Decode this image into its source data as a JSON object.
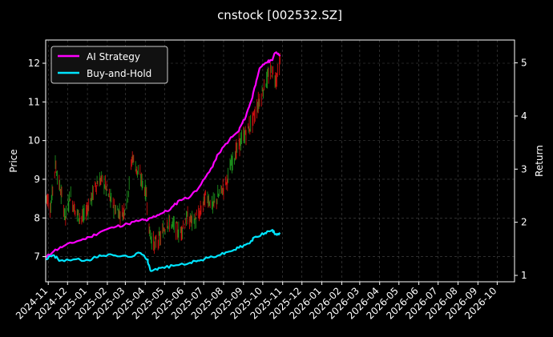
{
  "chart_data": {
    "type": "line",
    "title": "cnstock [002532.SZ]",
    "ylabel_left": "Price",
    "ylabel_right": "Return",
    "x_tick_labels": [
      "2024-11",
      "2024-12",
      "2025-01",
      "2025-02",
      "2025-03",
      "2025-04",
      "2025-05",
      "2025-06",
      "2025-07",
      "2025-08",
      "2025-09",
      "2025-10",
      "2025-11",
      "2025-12",
      "2026-01",
      "2026-02",
      "2026-03",
      "2026-04",
      "2026-05",
      "2026-06",
      "2026-07",
      "2026-08",
      "2026-09",
      "2026-10"
    ],
    "xlim": [
      "2024-10-28",
      "2026-10-28"
    ],
    "ylim_left": [
      6.35,
      12.6
    ],
    "ylim_right": [
      0.88,
      5.43
    ],
    "y_ticks_left": [
      7,
      8,
      9,
      10,
      11,
      12
    ],
    "y_ticks_right": [
      1,
      2,
      3,
      4,
      5
    ],
    "grid": true,
    "legend_position": "top-left",
    "colors": {
      "background": "#000000",
      "ai_strategy": "#ff00ff",
      "buy_and_hold": "#00e5ff",
      "candle_up": "#1fa01f",
      "candle_down": "#e01010",
      "grid": "#4a4a4a"
    },
    "price_points": [
      [
        "2024-10-28",
        8.6
      ],
      [
        "2024-11-05",
        8.3
      ],
      [
        "2024-11-12",
        9.4
      ],
      [
        "2024-11-20",
        8.7
      ],
      [
        "2024-11-28",
        8.0
      ],
      [
        "2024-12-05",
        8.6
      ],
      [
        "2024-12-15",
        8.1
      ],
      [
        "2024-12-25",
        8.0
      ],
      [
        "2025-01-05",
        8.4
      ],
      [
        "2025-01-15",
        8.9
      ],
      [
        "2025-01-25",
        9.0
      ],
      [
        "2025-02-05",
        8.5
      ],
      [
        "2025-02-15",
        8.2
      ],
      [
        "2025-02-25",
        8.1
      ],
      [
        "2025-03-05",
        8.6
      ],
      [
        "2025-03-12",
        9.6
      ],
      [
        "2025-03-20",
        9.2
      ],
      [
        "2025-03-28",
        8.9
      ],
      [
        "2025-04-03",
        8.6
      ],
      [
        "2025-04-08",
        7.6
      ],
      [
        "2025-04-15",
        7.3
      ],
      [
        "2025-04-25",
        7.5
      ],
      [
        "2025-05-05",
        7.9
      ],
      [
        "2025-05-15",
        7.8
      ],
      [
        "2025-05-25",
        7.6
      ],
      [
        "2025-06-05",
        8.0
      ],
      [
        "2025-06-15",
        7.9
      ],
      [
        "2025-06-25",
        8.1
      ],
      [
        "2025-07-05",
        8.6
      ],
      [
        "2025-07-15",
        8.3
      ],
      [
        "2025-07-25",
        8.6
      ],
      [
        "2025-08-05",
        8.9
      ],
      [
        "2025-08-15",
        9.5
      ],
      [
        "2025-08-25",
        9.9
      ],
      [
        "2025-09-05",
        10.2
      ],
      [
        "2025-09-15",
        10.5
      ],
      [
        "2025-09-25",
        11.0
      ],
      [
        "2025-10-05",
        11.5
      ],
      [
        "2025-10-15",
        11.8
      ],
      [
        "2025-10-22",
        11.6
      ],
      [
        "2025-10-28",
        12.0
      ]
    ],
    "series": [
      {
        "name": "AI Strategy",
        "points": [
          [
            "2024-10-28",
            1.33
          ],
          [
            "2024-11-10",
            1.46
          ],
          [
            "2024-11-25",
            1.55
          ],
          [
            "2024-12-15",
            1.64
          ],
          [
            "2025-01-05",
            1.72
          ],
          [
            "2025-01-25",
            1.84
          ],
          [
            "2025-02-15",
            1.92
          ],
          [
            "2025-03-05",
            1.97
          ],
          [
            "2025-03-25",
            2.04
          ],
          [
            "2025-04-05",
            2.04
          ],
          [
            "2025-04-12",
            2.09
          ],
          [
            "2025-04-25",
            2.16
          ],
          [
            "2025-05-10",
            2.24
          ],
          [
            "2025-05-25",
            2.42
          ],
          [
            "2025-06-10",
            2.48
          ],
          [
            "2025-06-25",
            2.68
          ],
          [
            "2025-07-10",
            2.95
          ],
          [
            "2025-07-25",
            3.3
          ],
          [
            "2025-08-10",
            3.55
          ],
          [
            "2025-08-25",
            3.72
          ],
          [
            "2025-09-05",
            4.0
          ],
          [
            "2025-09-15",
            4.35
          ],
          [
            "2025-09-25",
            4.85
          ],
          [
            "2025-10-05",
            5.0
          ],
          [
            "2025-10-15",
            5.05
          ],
          [
            "2025-10-22",
            5.2
          ],
          [
            "2025-10-28",
            5.15
          ]
        ]
      },
      {
        "name": "Buy-and-Hold",
        "points": [
          [
            "2024-10-28",
            1.3
          ],
          [
            "2024-11-08",
            1.38
          ],
          [
            "2024-11-20",
            1.28
          ],
          [
            "2024-12-10",
            1.3
          ],
          [
            "2025-01-05",
            1.28
          ],
          [
            "2025-01-20",
            1.38
          ],
          [
            "2025-02-10",
            1.38
          ],
          [
            "2025-03-05",
            1.35
          ],
          [
            "2025-03-25",
            1.42
          ],
          [
            "2025-04-05",
            1.3
          ],
          [
            "2025-04-10",
            1.08
          ],
          [
            "2025-04-25",
            1.14
          ],
          [
            "2025-05-15",
            1.18
          ],
          [
            "2025-06-10",
            1.24
          ],
          [
            "2025-06-25",
            1.28
          ],
          [
            "2025-07-10",
            1.34
          ],
          [
            "2025-07-25",
            1.38
          ],
          [
            "2025-08-10",
            1.45
          ],
          [
            "2025-08-25",
            1.52
          ],
          [
            "2025-09-10",
            1.6
          ],
          [
            "2025-09-20",
            1.73
          ],
          [
            "2025-10-05",
            1.8
          ],
          [
            "2025-10-15",
            1.85
          ],
          [
            "2025-10-22",
            1.78
          ],
          [
            "2025-10-28",
            1.8
          ]
        ]
      }
    ]
  }
}
